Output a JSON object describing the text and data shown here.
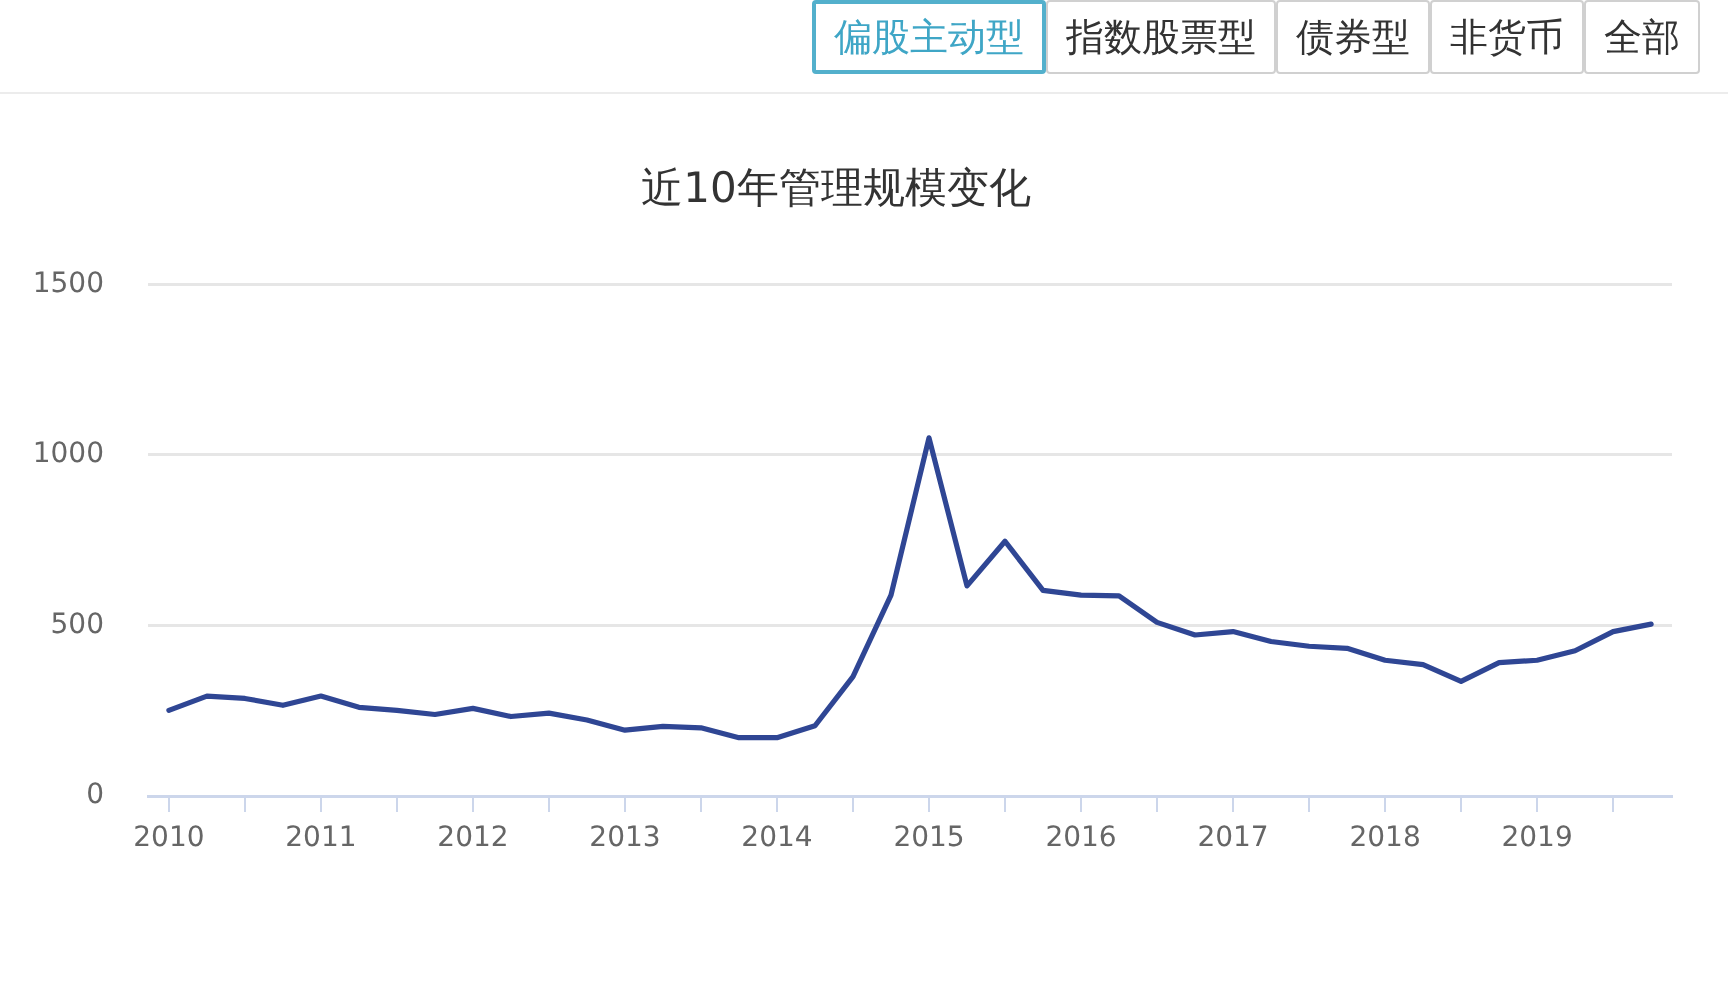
{
  "chart_data": {
    "type": "line",
    "title": "近10年管理规模变化",
    "annotations": [
      "偏股主动型",
      "指数股票型",
      "债券型",
      "非货币",
      "全部"
    ],
    "categories": [
      "2010",
      null,
      null,
      null,
      "2011",
      null,
      null,
      null,
      "2012",
      null,
      null,
      null,
      "2013",
      null,
      null,
      null,
      "2014",
      null,
      null,
      null,
      "2015",
      null,
      null,
      null,
      "2016",
      null,
      null,
      null,
      "2017",
      null,
      null,
      null,
      "2018",
      null,
      null,
      null,
      "2019",
      null,
      null,
      null
    ],
    "values": [
      251,
      293,
      286,
      266,
      293,
      260,
      251,
      239,
      257,
      233,
      243,
      223,
      193,
      204,
      200,
      171,
      171,
      206,
      350,
      589,
      1050,
      616,
      747,
      603,
      589,
      587,
      509,
      472,
      482,
      453,
      439,
      433,
      398,
      385,
      336,
      391,
      398,
      426,
      482,
      504
    ],
    "color": "#2f4694",
    "ylim": [
      0,
      1500
    ],
    "yticks": [
      0,
      500,
      1000,
      1500
    ],
    "grid": "y"
  }
}
